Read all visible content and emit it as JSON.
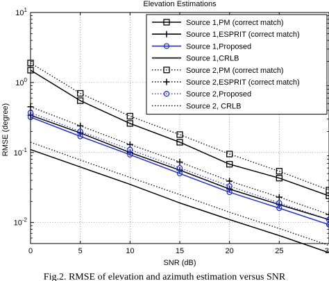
{
  "figure": {
    "caption": "Fig.2. RMSE of elevation and azimuth estimation versus SNR"
  },
  "chart_data": {
    "type": "line",
    "title": "Elevation Estimations",
    "xlabel": "SNR (dB)",
    "ylabel": "RMSE (degree)",
    "xlim": [
      0,
      30
    ],
    "ylim": [
      0.005,
      10
    ],
    "yscale": "log",
    "grid": true,
    "legend_position": "top-right",
    "x_ticks": [
      0,
      5,
      10,
      15,
      20,
      25,
      30
    ],
    "x_tick_labels": [
      "0",
      "5",
      "10",
      "15",
      "20",
      "25",
      "30"
    ],
    "y_ticks": [
      0.01,
      0.1,
      1,
      10
    ],
    "y_tick_labels": [
      {
        "base": "10",
        "exp": "-2"
      },
      {
        "base": "10",
        "exp": "-1"
      },
      {
        "base": "10",
        "exp": "0"
      },
      {
        "base": "10",
        "exp": "1"
      }
    ],
    "x": [
      0,
      5,
      10,
      15,
      20,
      25,
      30
    ],
    "series": [
      {
        "name": "Source 1,PM (correct match)",
        "color": "#000000",
        "dash": "solid",
        "marker": "square",
        "values": [
          1.5,
          0.55,
          0.26,
          0.14,
          0.068,
          0.043,
          0.024
        ]
      },
      {
        "name": "Source 1,ESPRIT (correct match)",
        "color": "#000000",
        "dash": "solid",
        "marker": "plus",
        "values": [
          0.34,
          0.19,
          0.1,
          0.056,
          0.03,
          0.018,
          0.011
        ]
      },
      {
        "name": "Source 1,Proposed",
        "color": "#1f2fd6",
        "dash": "solid",
        "marker": "circle",
        "values": [
          0.32,
          0.17,
          0.093,
          0.05,
          0.027,
          0.016,
          0.0093
        ]
      },
      {
        "name": "Source 1,CRLB",
        "color": "#000000",
        "dash": "solid",
        "marker": "none",
        "values": [
          0.11,
          0.062,
          0.035,
          0.019,
          0.011,
          0.0065,
          0.0037
        ]
      },
      {
        "name": "Source 2,PM (correct match)",
        "color": "#000000",
        "dash": "dotted",
        "marker": "square",
        "values": [
          1.9,
          0.7,
          0.33,
          0.18,
          0.095,
          0.054,
          0.029
        ]
      },
      {
        "name": "Source 2,ESPRIT (correct match)",
        "color": "#000000",
        "dash": "dotted",
        "marker": "plus",
        "values": [
          0.45,
          0.24,
          0.13,
          0.073,
          0.039,
          0.023,
          0.013
        ]
      },
      {
        "name": "Source 2,Proposed",
        "color": "#1f2fd6",
        "dash": "dotted",
        "marker": "circle",
        "values": [
          0.37,
          0.2,
          0.11,
          0.06,
          0.033,
          0.019,
          0.011
        ]
      },
      {
        "name": "Source 2, CRLB",
        "color": "#000000",
        "dash": "dotted",
        "marker": "none",
        "values": [
          0.14,
          0.078,
          0.044,
          0.025,
          0.014,
          0.0082,
          0.0047
        ]
      }
    ]
  }
}
